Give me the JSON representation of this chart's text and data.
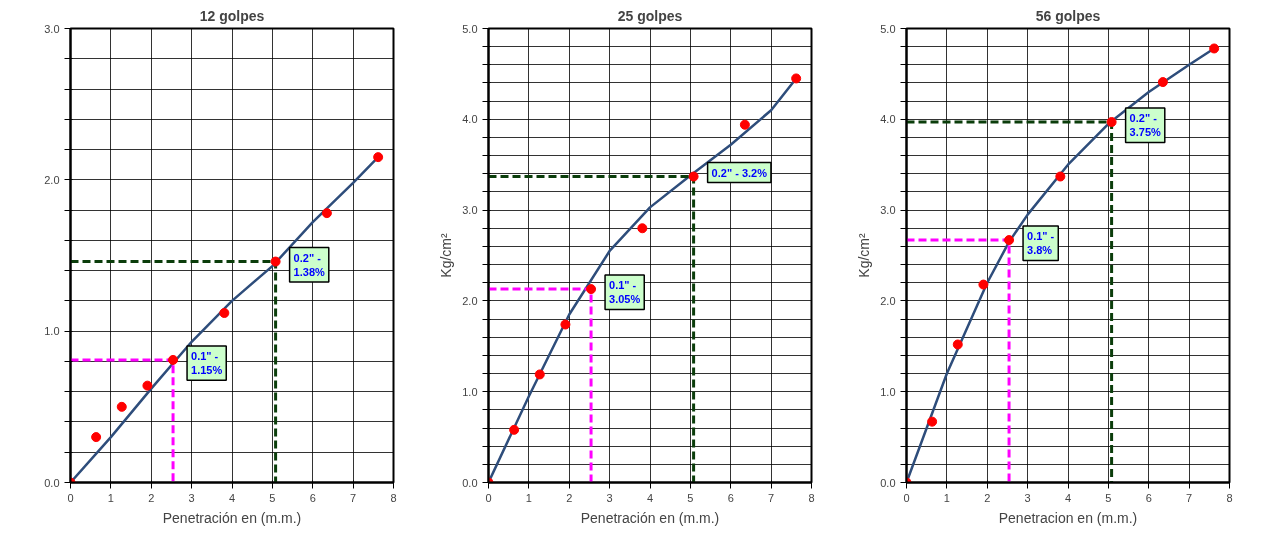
{
  "chart_data": [
    {
      "type": "scatter",
      "title": "12 golpes",
      "xlabel": "Penetración en (m.m.)",
      "xlim": [
        0,
        8
      ],
      "xticks": [
        0,
        1,
        2,
        3,
        4,
        5,
        6,
        7,
        8
      ],
      "ylim": [
        0,
        3
      ],
      "yticks": [
        {
          "value": 0,
          "label": "0.0"
        },
        {
          "value": 0.2,
          "label": null
        },
        {
          "value": 0.4,
          "label": null
        },
        {
          "value": 0.6,
          "label": null
        },
        {
          "value": 0.8,
          "label": null
        },
        {
          "value": 1,
          "label": "1.0"
        },
        {
          "value": 1.2,
          "label": null
        },
        {
          "value": 1.4,
          "label": null
        },
        {
          "value": 1.6,
          "label": null
        },
        {
          "value": 1.8,
          "label": null
        },
        {
          "value": 2,
          "label": "2.0"
        },
        {
          "value": 2.2,
          "label": null
        },
        {
          "value": 2.4,
          "label": null
        },
        {
          "value": 2.6,
          "label": null
        },
        {
          "value": 2.8,
          "label": null
        },
        {
          "value": 3,
          "label": "3.0"
        }
      ],
      "grid": true,
      "series": [
        {
          "type": "line",
          "color": "#2e4d7b",
          "line_style": "solid",
          "x": [
            0,
            1,
            2,
            3,
            4,
            5,
            6,
            7,
            7.62
          ],
          "values": [
            0,
            0.3,
            0.62,
            0.93,
            1.2,
            1.43,
            1.72,
            1.98,
            2.15
          ]
        },
        {
          "type": "line",
          "color": "#ff00ff",
          "line_style": "dashed",
          "x": [
            0,
            2.54,
            2.54
          ],
          "values": [
            0.81,
            0.81,
            0
          ]
        },
        {
          "type": "line",
          "color": "#0b3d0b",
          "line_style": "dashed",
          "x": [
            0,
            5.08,
            5.08
          ],
          "values": [
            1.46,
            1.46,
            0
          ]
        },
        {
          "color": "#ff0000",
          "marker": "circle",
          "x": [
            0,
            0.635,
            1.27,
            1.905,
            2.54,
            3.81,
            5.08,
            6.35,
            7.62
          ],
          "values": [
            0,
            0.3,
            0.5,
            0.64,
            0.81,
            1.12,
            1.46,
            1.78,
            2.15
          ]
        }
      ],
      "annotations": [
        "0.1\" -\n1.15%",
        "0.2\" -\n1.38%"
      ]
    },
    {
      "type": "scatter",
      "title": "25 golpes",
      "xlabel": "Penetración en (m.m.)",
      "ylabel": "Kg/cm²",
      "xlim": [
        0,
        8
      ],
      "xticks": [
        0,
        1,
        2,
        3,
        4,
        5,
        6,
        7,
        8
      ],
      "ylim": [
        0,
        5
      ],
      "yticks": [
        {
          "value": 0,
          "label": "0.0"
        },
        {
          "value": 0.2,
          "label": null
        },
        {
          "value": 0.4,
          "label": null
        },
        {
          "value": 0.6,
          "label": null
        },
        {
          "value": 0.8,
          "label": null
        },
        {
          "value": 1,
          "label": "1.0"
        },
        {
          "value": 1.2,
          "label": null
        },
        {
          "value": 1.4,
          "label": null
        },
        {
          "value": 1.6,
          "label": null
        },
        {
          "value": 1.8,
          "label": null
        },
        {
          "value": 2,
          "label": "2.0"
        },
        {
          "value": 2.2,
          "label": null
        },
        {
          "value": 2.4,
          "label": null
        },
        {
          "value": 2.6,
          "label": null
        },
        {
          "value": 2.8,
          "label": null
        },
        {
          "value": 3,
          "label": "3.0"
        },
        {
          "value": 3.2,
          "label": null
        },
        {
          "value": 3.4,
          "label": null
        },
        {
          "value": 3.6,
          "label": null
        },
        {
          "value": 3.8,
          "label": null
        },
        {
          "value": 4,
          "label": "4.0"
        },
        {
          "value": 4.2,
          "label": null
        },
        {
          "value": 4.4,
          "label": null
        },
        {
          "value": 4.6,
          "label": null
        },
        {
          "value": 4.8,
          "label": null
        },
        {
          "value": 5,
          "label": "5.0"
        }
      ],
      "grid": true,
      "series": [
        {
          "type": "line",
          "color": "#2e4d7b",
          "line_style": "solid",
          "x": [
            0,
            1,
            2,
            3,
            4,
            5,
            6,
            7,
            7.62
          ],
          "values": [
            0,
            0.95,
            1.85,
            2.55,
            3.03,
            3.38,
            3.72,
            4.1,
            4.45
          ]
        },
        {
          "type": "line",
          "color": "#ff00ff",
          "line_style": "dashed",
          "x": [
            0,
            2.54,
            2.54
          ],
          "values": [
            2.13,
            2.13,
            0
          ]
        },
        {
          "type": "line",
          "color": "#0b3d0b",
          "line_style": "dashed",
          "x": [
            0,
            5.08,
            5.08
          ],
          "values": [
            3.37,
            3.37,
            0
          ]
        },
        {
          "color": "#ff0000",
          "marker": "circle",
          "x": [
            0,
            0.635,
            1.27,
            1.905,
            2.54,
            3.81,
            5.08,
            6.35,
            7.62
          ],
          "values": [
            0,
            0.58,
            1.19,
            1.74,
            2.13,
            2.8,
            3.37,
            3.94,
            4.45
          ]
        }
      ],
      "annotations": [
        "0.1\" -\n3.05%",
        "0.2\" - 3.2%"
      ]
    },
    {
      "type": "scatter",
      "title": "56 golpes",
      "xlabel": "Penetracion en (m.m.)",
      "ylabel": "Kg/cm²",
      "xlim": [
        0,
        8
      ],
      "xticks": [
        0,
        1,
        2,
        3,
        4,
        5,
        6,
        7,
        8
      ],
      "ylim": [
        0,
        5
      ],
      "yticks": [
        {
          "value": 0,
          "label": "0.0"
        },
        {
          "value": 0.2,
          "label": null
        },
        {
          "value": 0.4,
          "label": null
        },
        {
          "value": 0.6,
          "label": null
        },
        {
          "value": 0.8,
          "label": null
        },
        {
          "value": 1,
          "label": "1.0"
        },
        {
          "value": 1.2,
          "label": null
        },
        {
          "value": 1.4,
          "label": null
        },
        {
          "value": 1.6,
          "label": null
        },
        {
          "value": 1.8,
          "label": null
        },
        {
          "value": 2,
          "label": "2.0"
        },
        {
          "value": 2.2,
          "label": null
        },
        {
          "value": 2.4,
          "label": null
        },
        {
          "value": 2.6,
          "label": null
        },
        {
          "value": 2.8,
          "label": null
        },
        {
          "value": 3,
          "label": "3.0"
        },
        {
          "value": 3.2,
          "label": null
        },
        {
          "value": 3.4,
          "label": null
        },
        {
          "value": 3.6,
          "label": null
        },
        {
          "value": 3.8,
          "label": null
        },
        {
          "value": 4,
          "label": "4.0"
        },
        {
          "value": 4.2,
          "label": null
        },
        {
          "value": 4.4,
          "label": null
        },
        {
          "value": 4.6,
          "label": null
        },
        {
          "value": 4.8,
          "label": null
        },
        {
          "value": 5,
          "label": "5.0"
        }
      ],
      "grid": true,
      "series": [
        {
          "type": "line",
          "color": "#2e4d7b",
          "line_style": "solid",
          "x": [
            0,
            1,
            2,
            2.54,
            3,
            4,
            5,
            6,
            7,
            7.62
          ],
          "values": [
            0,
            1.2,
            2.2,
            2.65,
            2.95,
            3.5,
            3.95,
            4.3,
            4.6,
            4.78
          ]
        },
        {
          "type": "line",
          "color": "#ff00ff",
          "line_style": "dashed",
          "x": [
            0,
            2.54,
            2.54
          ],
          "values": [
            2.67,
            2.67,
            0
          ]
        },
        {
          "type": "line",
          "color": "#0b3d0b",
          "line_style": "dashed",
          "x": [
            0,
            5.08,
            5.08
          ],
          "values": [
            3.97,
            3.97,
            0
          ]
        },
        {
          "color": "#ff0000",
          "marker": "circle",
          "x": [
            0,
            0.635,
            1.27,
            1.905,
            2.54,
            3.81,
            5.08,
            6.35,
            7.62
          ],
          "values": [
            0,
            0.67,
            1.52,
            2.18,
            2.67,
            3.37,
            3.97,
            4.41,
            4.78
          ]
        }
      ],
      "annotations": [
        "0.1\" -\n3.8%",
        "0.2\" -\n3.75%"
      ]
    }
  ]
}
